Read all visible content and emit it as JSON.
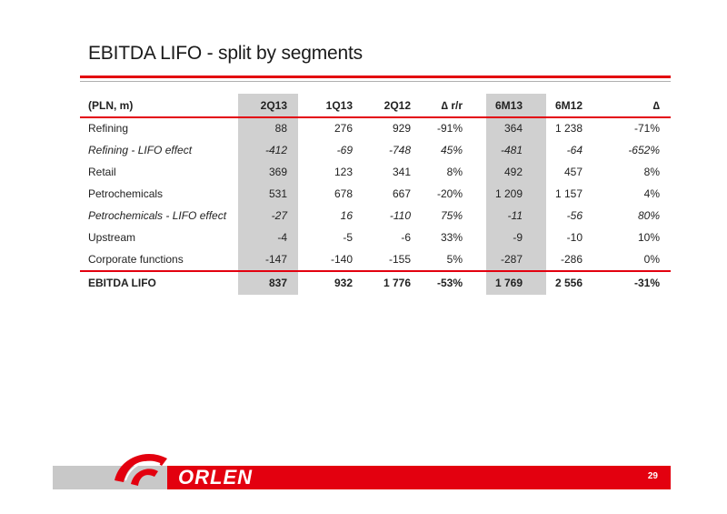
{
  "title": "EBITDA LIFO - split by segments",
  "table": {
    "headers": [
      "(PLN, m)",
      "2Q13",
      "1Q13",
      "2Q12",
      "∆ r/r",
      "6M13",
      "6M12",
      "∆"
    ],
    "rows": [
      {
        "label": "Refining",
        "italic": false,
        "values": [
          "88",
          "276",
          "929",
          "-91%",
          "364",
          "1 238",
          "-71%"
        ]
      },
      {
        "label": "Refining - LIFO effect",
        "italic": true,
        "values": [
          "-412",
          "-69",
          "-748",
          "45%",
          "-481",
          "-64",
          "-652%"
        ]
      },
      {
        "label": "Retail",
        "italic": false,
        "values": [
          "369",
          "123",
          "341",
          "8%",
          "492",
          "457",
          "8%"
        ]
      },
      {
        "label": "Petrochemicals",
        "italic": false,
        "values": [
          "531",
          "678",
          "667",
          "-20%",
          "1 209",
          "1 157",
          "4%"
        ]
      },
      {
        "label": "Petrochemicals - LIFO effect",
        "italic": true,
        "values": [
          "-27",
          "16",
          "-110",
          "75%",
          "-11",
          "-56",
          "80%"
        ]
      },
      {
        "label": "Upstream",
        "italic": false,
        "values": [
          "-4",
          "-5",
          "-6",
          "33%",
          "-9",
          "-10",
          "10%"
        ]
      },
      {
        "label": "Corporate functions",
        "italic": false,
        "values": [
          "-147",
          "-140",
          "-155",
          "5%",
          "-287",
          "-286",
          "0%"
        ]
      }
    ],
    "total": {
      "label": "EBITDA LIFO",
      "values": [
        "837",
        "932",
        "1 776",
        "-53%",
        "1 769",
        "2 556",
        "-31%"
      ]
    }
  },
  "footer": {
    "logo_text": "ORLEN",
    "page_number": "29"
  },
  "colors": {
    "accent": "#e3000f",
    "shade": "#d0d0d0",
    "footer_grey": "#c8c8c8"
  }
}
